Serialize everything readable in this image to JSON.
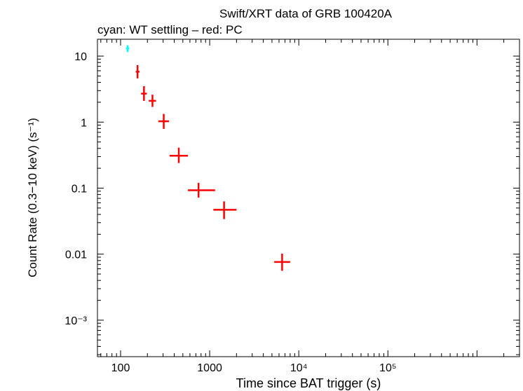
{
  "chart_data": {
    "type": "scatter",
    "title": "Swift/XRT data of GRB 100420A",
    "subtitle": "cyan: WT settling – red: PC",
    "xlabel": "Time since BAT trigger (s)",
    "ylabel": "Count Rate (0.3−10 keV) (s⁻¹)",
    "x_scale": "log",
    "y_scale": "log",
    "xlim": [
      55,
      3000000
    ],
    "ylim": [
      0.00028,
      18
    ],
    "x_ticks": [
      {
        "value": 100,
        "label": "100"
      },
      {
        "value": 1000,
        "label": "1000"
      },
      {
        "value": 10000,
        "label": "10⁴"
      },
      {
        "value": 100000,
        "label": "10⁵"
      }
    ],
    "y_ticks": [
      {
        "value": 10,
        "label": "10"
      },
      {
        "value": 1,
        "label": "1"
      },
      {
        "value": 0.1,
        "label": "0.1"
      },
      {
        "value": 0.01,
        "label": "0.01"
      },
      {
        "value": 0.001,
        "label": "10⁻³"
      }
    ],
    "grid": false,
    "series": [
      {
        "name": "WT settling",
        "color": "#00ffff",
        "points": [
          {
            "x": 120,
            "xlo": 115,
            "xhi": 125,
            "y": 13,
            "ylo": 11.5,
            "yhi": 14.6
          }
        ]
      },
      {
        "name": "PC",
        "color": "#ff0000",
        "points": [
          {
            "x": 155,
            "xlo": 148,
            "xhi": 163,
            "y": 5.8,
            "ylo": 4.6,
            "yhi": 7.3
          },
          {
            "x": 183,
            "xlo": 170,
            "xhi": 197,
            "y": 2.7,
            "ylo": 2.1,
            "yhi": 3.5
          },
          {
            "x": 228,
            "xlo": 207,
            "xhi": 250,
            "y": 2.1,
            "ylo": 1.7,
            "yhi": 2.6
          },
          {
            "x": 305,
            "xlo": 265,
            "xhi": 350,
            "y": 1.03,
            "ylo": 0.79,
            "yhi": 1.33
          },
          {
            "x": 450,
            "xlo": 355,
            "xhi": 570,
            "y": 0.31,
            "ylo": 0.24,
            "yhi": 0.41
          },
          {
            "x": 750,
            "xlo": 570,
            "xhi": 1150,
            "y": 0.093,
            "ylo": 0.072,
            "yhi": 0.12
          },
          {
            "x": 1450,
            "xlo": 1100,
            "xhi": 2000,
            "y": 0.047,
            "ylo": 0.034,
            "yhi": 0.063
          },
          {
            "x": 6500,
            "xlo": 5300,
            "xhi": 8000,
            "y": 0.0076,
            "ylo": 0.0056,
            "yhi": 0.0102
          }
        ]
      }
    ]
  }
}
